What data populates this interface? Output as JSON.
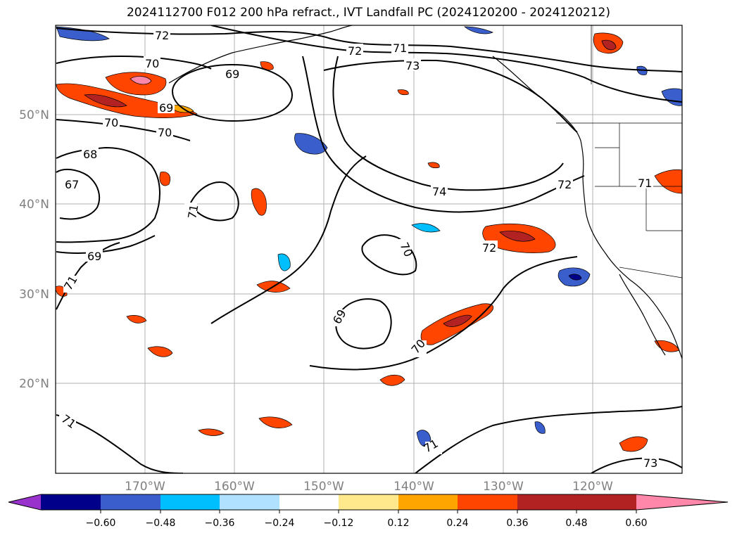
{
  "title": "2024112700 F012 200 hPa refract., IVT Landfall PC (2024120200 - 2024120212)",
  "lat_labels": [
    "50°N",
    "40°N",
    "30°N",
    "20°N"
  ],
  "lon_labels": [
    "170°W",
    "160°W",
    "150°W",
    "140°W",
    "130°W",
    "120°W"
  ],
  "contour_labels": [
    "72",
    "72",
    "71",
    "73",
    "70",
    "69",
    "69",
    "70",
    "70",
    "68",
    "67",
    "71",
    "74",
    "72",
    "71",
    "70",
    "72",
    "69",
    "71",
    "70",
    "71",
    "71",
    "73",
    "69"
  ],
  "colorbar": {
    "ticks": [
      "−0.60",
      "−0.48",
      "−0.36",
      "−0.24",
      "−0.12",
      "0.12",
      "0.24",
      "0.36",
      "0.48",
      "0.60"
    ],
    "colors": [
      "#9932cc",
      "#00008b",
      "#3a5fcd",
      "#00bfff",
      "#b0e2ff",
      "#ffffff",
      "#ffe98c",
      "#ffa500",
      "#ff4500",
      "#b22222",
      "#ff88aa"
    ]
  }
}
